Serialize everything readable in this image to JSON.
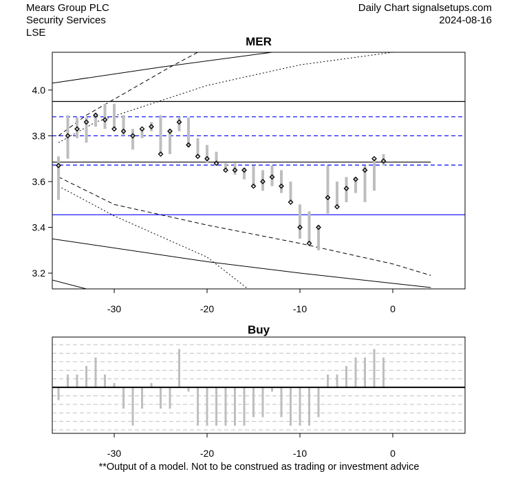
{
  "header": {
    "company": "Mears Group PLC",
    "sector": "Security Services",
    "exchange": "LSE",
    "source": "Daily Chart signalsetups.com",
    "date": "2024-08-16"
  },
  "footer": "**Output of a model. Not to be construed as trading or investment advice",
  "colors": {
    "candle": "#bebebe",
    "band": "#0000ff",
    "grid": "#c0c0c0"
  },
  "chart_data": [
    {
      "type": "candlestick",
      "title": "MER",
      "xlim": [
        -36.67,
        7.78
      ],
      "ylim": [
        3.131,
        4.165
      ],
      "xticks": [
        -30,
        -20,
        -10,
        0
      ],
      "yticks": [
        3.2,
        3.4,
        3.6,
        3.8,
        4.0
      ],
      "ytick_labels": [
        "3.2",
        "3.4",
        "3.6",
        "3.8",
        "4.0"
      ],
      "xtick_labels": [
        "-30",
        "-20",
        "-10",
        "0"
      ],
      "days": [
        -36,
        -35,
        -34,
        -33,
        -32,
        -31,
        -30,
        -29,
        -28,
        -27,
        -26,
        -25,
        -24,
        -23,
        -22,
        -21,
        -20,
        -19,
        -18,
        -17,
        -16,
        -15,
        -14,
        -13,
        -12,
        -11,
        -10,
        -9,
        -8,
        -7,
        -6,
        -5,
        -4,
        -3,
        -2,
        -1
      ],
      "high": [
        3.71,
        3.89,
        3.88,
        3.88,
        3.9,
        3.94,
        3.94,
        3.89,
        3.83,
        3.83,
        3.86,
        3.89,
        3.83,
        3.88,
        3.88,
        3.79,
        3.76,
        3.73,
        3.68,
        3.68,
        3.66,
        3.67,
        3.65,
        3.67,
        3.65,
        3.6,
        3.5,
        3.47,
        3.41,
        3.67,
        3.6,
        3.62,
        3.62,
        3.67,
        3.7,
        3.72
      ],
      "low": [
        3.52,
        3.7,
        3.79,
        3.77,
        3.84,
        3.83,
        3.83,
        3.8,
        3.74,
        3.79,
        3.82,
        3.72,
        3.72,
        3.82,
        3.75,
        3.71,
        3.68,
        3.68,
        3.65,
        3.63,
        3.61,
        3.58,
        3.56,
        3.58,
        3.55,
        3.51,
        3.35,
        3.33,
        3.3,
        3.46,
        3.49,
        3.51,
        3.55,
        3.51,
        3.56,
        3.67
      ],
      "close": [
        3.67,
        3.8,
        3.83,
        3.86,
        3.89,
        3.87,
        3.83,
        3.82,
        3.8,
        3.83,
        3.84,
        3.72,
        3.82,
        3.86,
        3.76,
        3.71,
        3.7,
        3.68,
        3.65,
        3.65,
        3.65,
        3.58,
        3.6,
        3.62,
        3.58,
        3.51,
        3.4,
        3.33,
        3.4,
        3.53,
        3.49,
        3.57,
        3.61,
        3.65,
        3.7,
        3.69
      ],
      "hlines": [
        {
          "value": 3.95,
          "style": "solid",
          "color": "#000000"
        },
        {
          "value": 3.685,
          "style": "solid",
          "color": "#000000",
          "x_end": 4.1
        },
        {
          "value": 3.455,
          "style": "solid",
          "color": "#0000ff"
        },
        {
          "value": 3.883,
          "style": "dashed",
          "color": "#0000ff"
        },
        {
          "value": 3.8,
          "style": "dashed",
          "color": "#0000ff"
        },
        {
          "value": 3.672,
          "style": "dashed",
          "color": "#0000ff"
        }
      ],
      "curves": [
        {
          "style": "solid",
          "points": [
            [
              -36.7,
              4.03
            ],
            [
              -25,
              4.1
            ],
            [
              -13,
              4.165
            ]
          ]
        },
        {
          "style": "dashed",
          "points": [
            [
              -36,
              3.8
            ],
            [
              -33,
              3.89
            ],
            [
              -30,
              3.96
            ],
            [
              -27,
              4.03
            ],
            [
              -24,
              4.1
            ],
            [
              -21,
              4.165
            ]
          ]
        },
        {
          "style": "dotted",
          "points": [
            [
              -36,
              3.77
            ],
            [
              -32,
              3.86
            ],
            [
              -26,
              3.94
            ],
            [
              -20,
              4.02
            ],
            [
              -10,
              4.11
            ],
            [
              0,
              4.165
            ]
          ]
        },
        {
          "style": "solid",
          "points": [
            [
              -36.7,
              3.35
            ],
            [
              -20,
              3.25
            ],
            [
              -10,
              3.2
            ],
            [
              4.1,
              3.137
            ]
          ]
        },
        {
          "style": "dashed",
          "points": [
            [
              -36,
              3.62
            ],
            [
              -30,
              3.5
            ],
            [
              -20,
              3.41
            ],
            [
              -10,
              3.33
            ],
            [
              0,
              3.24
            ],
            [
              4.1,
              3.19
            ]
          ]
        },
        {
          "style": "dotted",
          "points": [
            [
              -36,
              3.58
            ],
            [
              -30,
              3.45
            ],
            [
              -25,
              3.36
            ],
            [
              -20,
              3.27
            ],
            [
              -15.6,
              3.131
            ]
          ]
        },
        {
          "style": "solid",
          "points": [
            [
              -36.7,
              3.17
            ],
            [
              -33,
              3.131
            ]
          ]
        }
      ]
    },
    {
      "type": "bar",
      "title": "Buy",
      "xlim": [
        -36.67,
        7.78
      ],
      "ylim": [
        -5.4,
        5.9
      ],
      "gridlines": [
        -5,
        -4,
        -3,
        -2,
        -1,
        1,
        2,
        3,
        4,
        5
      ],
      "xticks": [
        -30,
        -20,
        -10,
        0
      ],
      "xtick_labels": [
        "-30",
        "-20",
        "-10",
        "0"
      ],
      "days": [
        -36,
        -35,
        -34,
        -33,
        -32,
        -31,
        -30,
        -29,
        -28,
        -27,
        -26,
        -25,
        -24,
        -23,
        -22,
        -21,
        -20,
        -19,
        -18,
        -17,
        -16,
        -15,
        -14,
        -13,
        -12,
        -11,
        -10,
        -9,
        -8,
        -7,
        -6,
        -5,
        -4,
        -3,
        -2,
        -1
      ],
      "values": [
        -1.5,
        1.5,
        1.5,
        2.5,
        3.5,
        1.5,
        0.5,
        -2.5,
        -4.5,
        -2.5,
        0.5,
        -2.5,
        -2.5,
        4.5,
        -0.5,
        -4.5,
        -4.5,
        -4.5,
        -4.5,
        -4.5,
        -4.5,
        -3.5,
        -3.5,
        -0.5,
        -3.5,
        -4.5,
        -4.5,
        -4.5,
        -3.5,
        1.5,
        1.5,
        2.5,
        3.5,
        3.5,
        4.5,
        3.5
      ]
    }
  ]
}
